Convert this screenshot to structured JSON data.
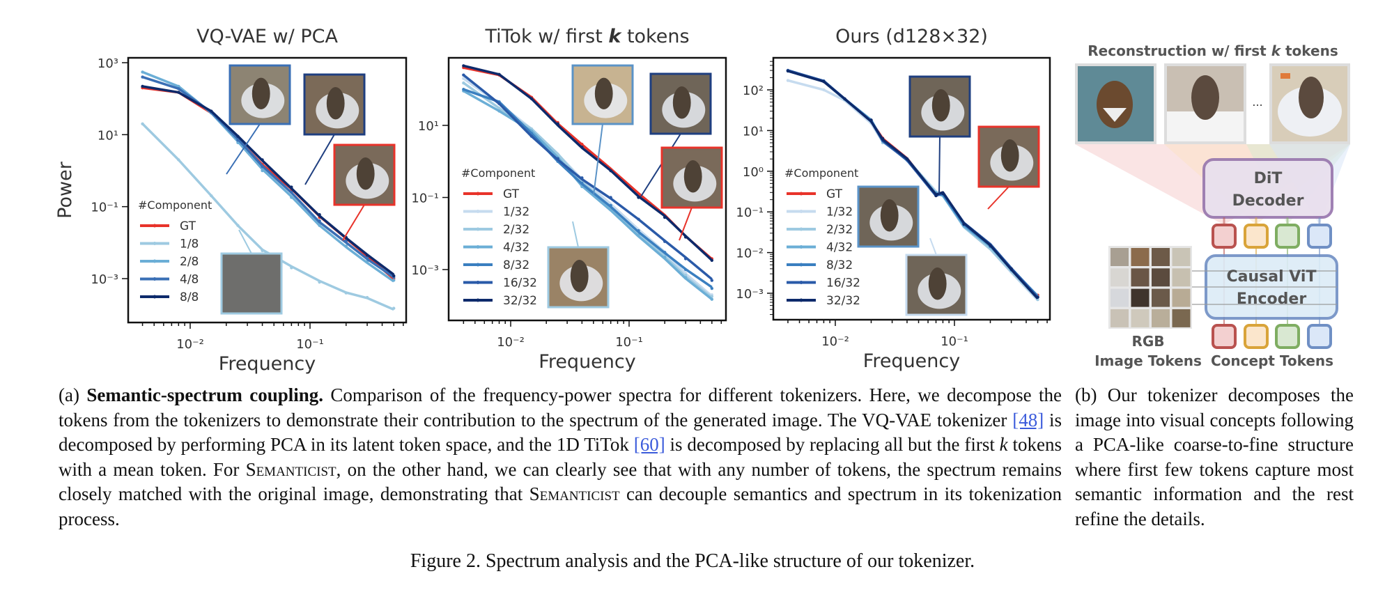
{
  "chart_data": [
    {
      "type": "line",
      "title": "VQ-VAE w/ PCA",
      "xlabel": "Frequency",
      "ylabel": "Power",
      "xscale": "log",
      "yscale": "log",
      "xlim": [
        0.003,
        0.6
      ],
      "ylim": [
        5e-05,
        2000
      ],
      "xticks": [
        {
          "v": 0.01,
          "label": "10^-2"
        },
        {
          "v": 0.1,
          "label": "10^-1"
        }
      ],
      "yticks": [
        {
          "v": 1000,
          "label": "10^3"
        },
        {
          "v": 10,
          "label": "10^1"
        },
        {
          "v": 0.1,
          "label": "10^-1"
        },
        {
          "v": 0.001,
          "label": "10^-3"
        }
      ],
      "legend_title": "#Component",
      "legend_position": "lower-left",
      "x": [
        0.004,
        0.008,
        0.015,
        0.025,
        0.04,
        0.07,
        0.12,
        0.2,
        0.3,
        0.5
      ],
      "series": [
        {
          "name": "GT",
          "color": "#e8332a",
          "values": [
            200,
            150,
            40,
            8,
            1.5,
            0.3,
            0.05,
            0.012,
            0.004,
            0.001
          ]
        },
        {
          "name": "1/8",
          "color": "#9ecae1",
          "values": [
            20,
            2,
            0.2,
            0.03,
            0.006,
            0.002,
            0.0008,
            0.0004,
            0.0003,
            0.00015
          ]
        },
        {
          "name": "2/8",
          "color": "#6baed6",
          "values": [
            550,
            220,
            40,
            6,
            1.0,
            0.18,
            0.03,
            0.008,
            0.003,
            0.0009
          ]
        },
        {
          "name": "4/8",
          "color": "#3a6fb5",
          "values": [
            400,
            190,
            42,
            7,
            1.3,
            0.25,
            0.04,
            0.011,
            0.0037,
            0.0011
          ]
        },
        {
          "name": "8/8",
          "color": "#0d2a6b",
          "values": [
            220,
            150,
            45,
            9,
            2,
            0.35,
            0.06,
            0.014,
            0.0045,
            0.0012
          ]
        }
      ],
      "insets": [
        {
          "label": "2/8 reconstruction",
          "border": "#3a6fb5"
        },
        {
          "label": "8/8 reconstruction",
          "border": "#1f3f80"
        },
        {
          "label": "GT image",
          "border": "#e8332a"
        },
        {
          "label": "1/8 reconstruction",
          "border": "#9ecae1"
        }
      ]
    },
    {
      "type": "line",
      "title": "TiTok w/ first k tokens",
      "xlabel": "Frequency",
      "ylabel": "",
      "xscale": "log",
      "yscale": "log",
      "xlim": [
        0.003,
        0.6
      ],
      "ylim": [
        3e-05,
        1500
      ],
      "xticks": [
        {
          "v": 0.01,
          "label": "10^-2"
        },
        {
          "v": 0.1,
          "label": "10^-1"
        }
      ],
      "yticks": [
        {
          "v": 10,
          "label": "10^1"
        },
        {
          "v": 0.1,
          "label": "10^-1"
        },
        {
          "v": 0.001,
          "label": "10^-3"
        }
      ],
      "legend_title": "#Component",
      "legend_position": "lower-left",
      "x": [
        0.004,
        0.008,
        0.015,
        0.025,
        0.04,
        0.07,
        0.12,
        0.2,
        0.3,
        0.5
      ],
      "series": [
        {
          "name": "GT",
          "color": "#e8332a",
          "values": [
            400,
            250,
            60,
            12,
            3,
            0.6,
            0.12,
            0.03,
            0.008,
            0.002
          ]
        },
        {
          "name": "1/32",
          "color": "#c6dbef",
          "values": [
            200,
            40,
            8,
            1.6,
            0.3,
            0.06,
            0.012,
            0.003,
            0.0008,
            0.0002
          ]
        },
        {
          "name": "2/32",
          "color": "#9ecae1",
          "values": [
            150,
            30,
            8,
            1.5,
            0.25,
            0.05,
            0.01,
            0.0025,
            0.0007,
            0.00018
          ]
        },
        {
          "name": "4/32",
          "color": "#6baed6",
          "values": [
            90,
            25,
            7,
            1.2,
            0.2,
            0.045,
            0.009,
            0.0022,
            0.0006,
            0.00015
          ]
        },
        {
          "name": "8/32",
          "color": "#3a7fc0",
          "values": [
            100,
            45,
            6,
            1,
            0.25,
            0.06,
            0.012,
            0.003,
            0.001,
            0.0003
          ]
        },
        {
          "name": "16/32",
          "color": "#2a5aa8",
          "values": [
            250,
            40,
            5,
            1.2,
            0.35,
            0.1,
            0.025,
            0.006,
            0.002,
            0.0005
          ]
        },
        {
          "name": "32/32",
          "color": "#0d2a6b",
          "values": [
            450,
            260,
            55,
            11,
            2.5,
            0.55,
            0.1,
            0.028,
            0.008,
            0.0018
          ]
        }
      ],
      "insets": [
        {
          "label": "4/32 reconstruction",
          "border": "#5b93c7"
        },
        {
          "label": "32/32 reconstruction",
          "border": "#1f3f80"
        },
        {
          "label": "GT image",
          "border": "#e8332a"
        },
        {
          "label": "1/32 reconstruction",
          "border": "#9ecae1"
        }
      ]
    },
    {
      "type": "line",
      "title": "Ours (d128×32)",
      "xlabel": "Frequency",
      "ylabel": "",
      "xscale": "log",
      "yscale": "log",
      "xlim": [
        0.003,
        0.6
      ],
      "ylim": [
        0.0002,
        800
      ],
      "xticks": [
        {
          "v": 0.01,
          "label": "10^-2"
        },
        {
          "v": 0.1,
          "label": "10^-1"
        }
      ],
      "yticks": [
        {
          "v": 100,
          "label": "10^2"
        },
        {
          "v": 10,
          "label": "10^1"
        },
        {
          "v": 1,
          "label": "10^0"
        },
        {
          "v": 0.1,
          "label": "10^-1"
        },
        {
          "v": 0.01,
          "label": "10^-2"
        },
        {
          "v": 0.001,
          "label": "10^-3"
        }
      ],
      "legend_title": "#Component",
      "legend_position": "lower-left",
      "x": [
        0.004,
        0.008,
        0.012,
        0.02,
        0.025,
        0.04,
        0.07,
        0.08,
        0.12,
        0.2,
        0.3,
        0.5
      ],
      "series": [
        {
          "name": "GT",
          "color": "#e8332a",
          "values": [
            300,
            160,
            60,
            18,
            6.5,
            2,
            0.25,
            0.28,
            0.05,
            0.015,
            0.004,
            0.0009
          ]
        },
        {
          "name": "1/32",
          "color": "#c6dbef",
          "values": [
            170,
            100,
            55,
            15,
            5,
            1.8,
            0.3,
            0.26,
            0.045,
            0.013,
            0.0035,
            0.0007
          ]
        },
        {
          "name": "2/32",
          "color": "#9ecae1",
          "values": [
            290,
            160,
            58,
            16,
            5,
            1.9,
            0.3,
            0.27,
            0.046,
            0.013,
            0.0035,
            0.0007
          ]
        },
        {
          "name": "4/32",
          "color": "#6baed6",
          "values": [
            300,
            165,
            60,
            17,
            5.5,
            2,
            0.3,
            0.27,
            0.047,
            0.014,
            0.0037,
            0.0008
          ]
        },
        {
          "name": "8/32",
          "color": "#3a7fc0",
          "values": [
            300,
            165,
            60,
            17,
            6,
            2,
            0.28,
            0.28,
            0.048,
            0.014,
            0.0038,
            0.0008
          ]
        },
        {
          "name": "16/32",
          "color": "#2a5aa8",
          "values": [
            300,
            165,
            60,
            18,
            6,
            2,
            0.25,
            0.28,
            0.05,
            0.015,
            0.004,
            0.0008
          ]
        },
        {
          "name": "32/32",
          "color": "#0d2a6b",
          "values": [
            290,
            160,
            60,
            18,
            6.3,
            2,
            0.25,
            0.28,
            0.05,
            0.015,
            0.004,
            0.0008
          ]
        }
      ],
      "insets": [
        {
          "label": "32/32 reconstruction",
          "border": "#1f3f80"
        },
        {
          "label": "GT image",
          "border": "#e8332a"
        },
        {
          "label": "4/32 reconstruction",
          "border": "#5b93c7"
        },
        {
          "label": "1/32 reconstruction",
          "border": "#c6dbef"
        }
      ]
    }
  ],
  "diagram": {
    "recon_title_pre": "Reconstruction w/ first ",
    "recon_title_k": "k",
    "recon_title_post": " tokens",
    "ellipsis": "...",
    "decoder_line1": "DiT",
    "decoder_line2": "Decoder",
    "encoder_line1": "Causal ViT",
    "encoder_line2": "Encoder",
    "rgb_label_line1": "RGB",
    "rgb_label_line2": "Image Tokens",
    "concept_label": "Concept Tokens",
    "token_colors": [
      {
        "stroke": "#b9524f",
        "fill": "#f3d0d0"
      },
      {
        "stroke": "#d9a43a",
        "fill": "#fbe6cc"
      },
      {
        "stroke": "#7fad62",
        "fill": "#d9e8d2"
      },
      {
        "stroke": "#6f8fc4",
        "fill": "#dbe7f8"
      }
    ],
    "decoder_color": {
      "stroke": "#9b7bb0",
      "fill": "#e9e0ee"
    },
    "encoder_color": {
      "stroke": "#6f8fc4",
      "fill": "#dcecf7"
    }
  },
  "caption_a": {
    "prefix": "(a) ",
    "bold": "Semantic-spectrum coupling.",
    "t1": " Comparison of the frequency-power spectra for different tokenizers. Here, we decompose the tokens from the tokenizers to demonstrate their contribution to the spectrum of the generated image. The VQ-VAE tokenizer ",
    "ref1": "[48]",
    "t2": " is decomposed by performing PCA in its latent token space, and the 1D TiTok ",
    "ref2": "[60]",
    "t3": " is decomposed by replacing all but the first ",
    "k": "k",
    "t4": " tokens with a mean token. For ",
    "sc1": "Semanticist",
    "t5": ", on the other hand, we can clearly see that with any number of tokens, the spectrum remains closely matched with the original image, demonstrating that ",
    "sc2": "Semanticist",
    "t6": " can decouple semantics and spectrum in its tokenization process."
  },
  "caption_b": "(b) Our tokenizer decomposes the image into visual concepts following a PCA-like coarse-to-fine structure where first few tokens capture most semantic information and the rest refine the details.",
  "figure_caption": "Figure 2. Spectrum analysis and the PCA-like structure of our tokenizer."
}
